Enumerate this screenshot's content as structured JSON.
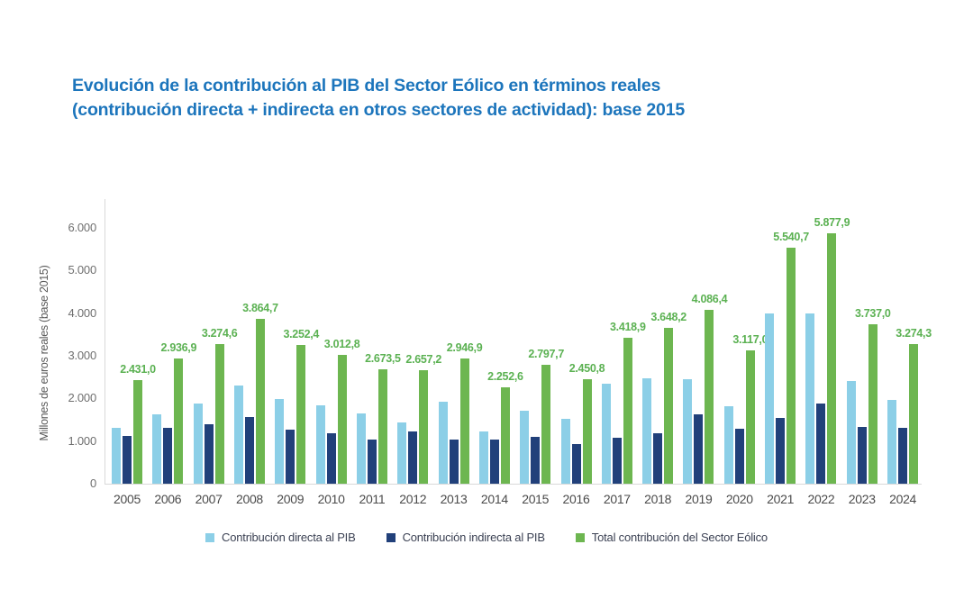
{
  "title": {
    "line1": "Evolución de la contribución al PIB del Sector Eólico en términos reales",
    "line2": "(contribución directa + indirecta en otros sectores de actividad): base 2015",
    "color": "#1c75bc"
  },
  "chart_data": {
    "type": "bar",
    "title": "Evolución de la contribución al PIB del Sector Eólico en términos reales (contribución directa + indirecta en otros sectores de actividad): base 2015",
    "ylabel": "Millones de euros reales (base 2015)",
    "xlabel": "",
    "ylim": [
      0,
      6000
    ],
    "yticks": [
      0,
      1000,
      2000,
      3000,
      4000,
      5000,
      6000
    ],
    "ytick_labels": [
      "0",
      "1.000",
      "2.000",
      "3.000",
      "4.000",
      "5.000",
      "6.000"
    ],
    "grid": false,
    "legend_position": "bottom",
    "categories": [
      "2005",
      "2006",
      "2007",
      "2008",
      "2009",
      "2010",
      "2011",
      "2012",
      "2013",
      "2014",
      "2015",
      "2016",
      "2017",
      "2018",
      "2019",
      "2020",
      "2021",
      "2022",
      "2023",
      "2024"
    ],
    "series": [
      {
        "name": "Contribución directa al PIB",
        "color": "#8ccfe7",
        "values": [
          1310,
          1630,
          1890,
          2300,
          1980,
          1830,
          1640,
          1440,
          1915,
          1220,
          1705,
          1520,
          2340,
          2465,
          2455,
          1820,
          4000,
          3990,
          2400,
          1970
        ]
      },
      {
        "name": "Contribución indirecta al PIB",
        "color": "#21407a",
        "values": [
          1120,
          1310,
          1390,
          1560,
          1270,
          1180,
          1030,
          1220,
          1030,
          1030,
          1090,
          930,
          1080,
          1185,
          1630,
          1295,
          1540,
          1890,
          1335,
          1305
        ]
      },
      {
        "name": "Total contribución del Sector Eólico",
        "color": "#6db650",
        "values": [
          2431.0,
          2936.9,
          3274.6,
          3864.7,
          3252.4,
          3012.8,
          2673.5,
          2657.2,
          2946.9,
          2252.6,
          2797.7,
          2450.8,
          3418.9,
          3648.2,
          4086.4,
          3117.0,
          5540.7,
          5877.9,
          3737.0,
          3274.3
        ],
        "data_labels": [
          "2.431,0",
          "2.936,9",
          "3.274,6",
          "3.864,7",
          "3.252,4",
          "3.012,8",
          "2.673,5",
          "2.657,2",
          "2.946,9",
          "2.252,6",
          "2.797,7",
          "2.450,8",
          "3.418,9",
          "3.648,2",
          "4.086,4",
          "3.117,0",
          "5.540,7",
          "5.877,9",
          "3.737,0",
          "3.274,3"
        ]
      }
    ],
    "data_label_color": "#5bb152"
  }
}
